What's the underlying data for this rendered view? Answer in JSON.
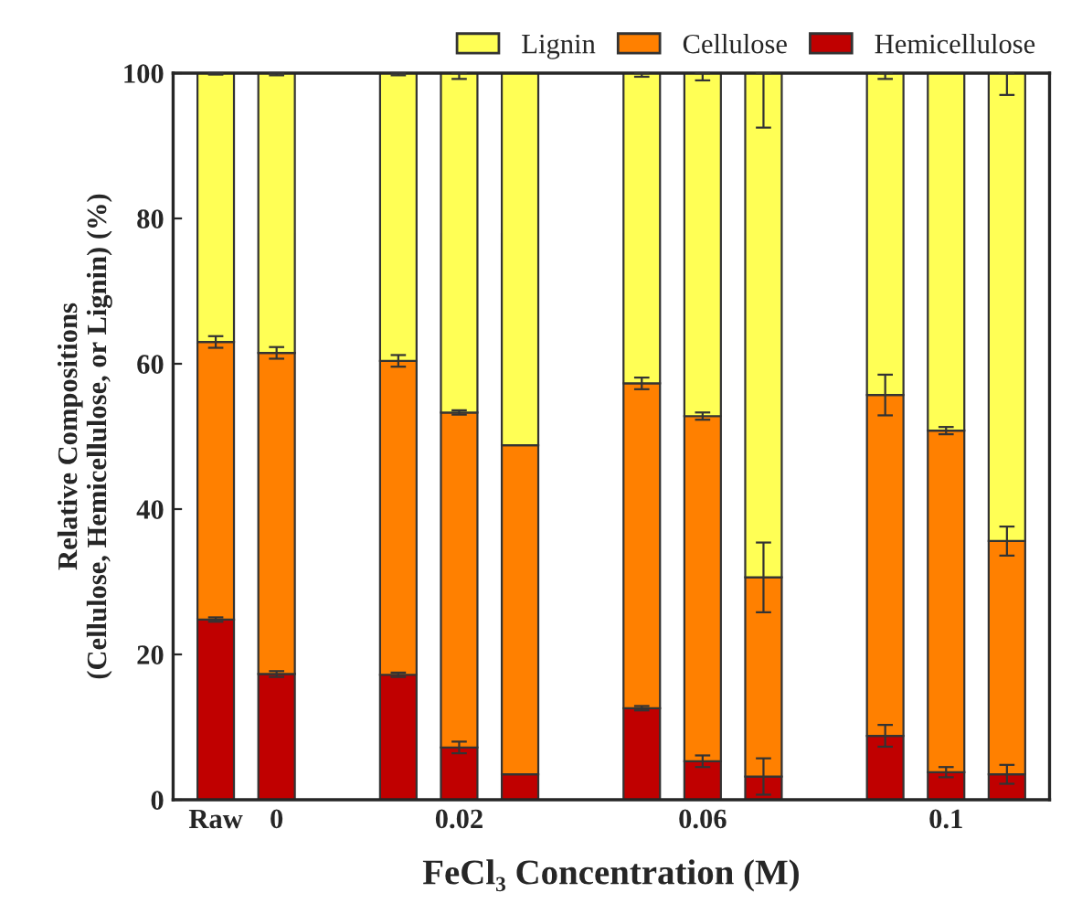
{
  "chart_data": {
    "type": "bar",
    "stacked": true,
    "xlabel": "FeCl₃ Concentration (M)",
    "ylabel": "Relative Compositions\n(Cellulose, Hemicellulose, or Lignin) (%)",
    "categories": [
      "Raw",
      "0",
      null,
      null,
      "0.02",
      null,
      null,
      null,
      "0.06",
      null,
      null,
      null,
      "0.1",
      null
    ],
    "series": [
      {
        "name": "Hemicellulose",
        "color": "#c00000",
        "values": [
          24.8,
          17.3,
          null,
          17.2,
          7.2,
          3.5,
          null,
          12.6,
          5.3,
          3.2,
          null,
          8.8,
          3.8,
          3.5
        ],
        "errors": [
          0.3,
          0.4,
          null,
          0.3,
          0.8,
          null,
          null,
          0.3,
          0.8,
          2.5,
          null,
          1.5,
          0.7,
          1.3
        ]
      },
      {
        "name": "Cellulose",
        "color": "#ff8000",
        "values": [
          38.2,
          44.2,
          null,
          43.2,
          46.1,
          45.3,
          null,
          44.7,
          47.5,
          27.4,
          null,
          46.9,
          47.0,
          32.1
        ],
        "errors": [
          0.8,
          0.8,
          null,
          0.8,
          0.3,
          null,
          null,
          0.8,
          0.5,
          4.8,
          null,
          2.8,
          0.5,
          2.0
        ]
      },
      {
        "name": "Lignin",
        "color": "#ffff55",
        "values": [
          37.0,
          38.5,
          null,
          39.6,
          46.7,
          51.2,
          null,
          42.7,
          47.2,
          69.4,
          null,
          44.3,
          49.2,
          64.4
        ],
        "errors": [
          [
            99.8,
            100
          ],
          [
            99.7,
            100
          ],
          null,
          [
            99.7,
            100
          ],
          [
            99.2,
            100
          ],
          null,
          null,
          [
            99.5,
            100
          ],
          [
            99.0,
            100
          ],
          [
            92.5,
            100
          ],
          null,
          [
            99.2,
            100
          ],
          null,
          [
            97.0,
            100
          ]
        ]
      }
    ],
    "ylim": [
      0,
      100
    ],
    "yticks": [
      0,
      20,
      40,
      60,
      80,
      100
    ],
    "legend": "top right",
    "grid": false
  }
}
